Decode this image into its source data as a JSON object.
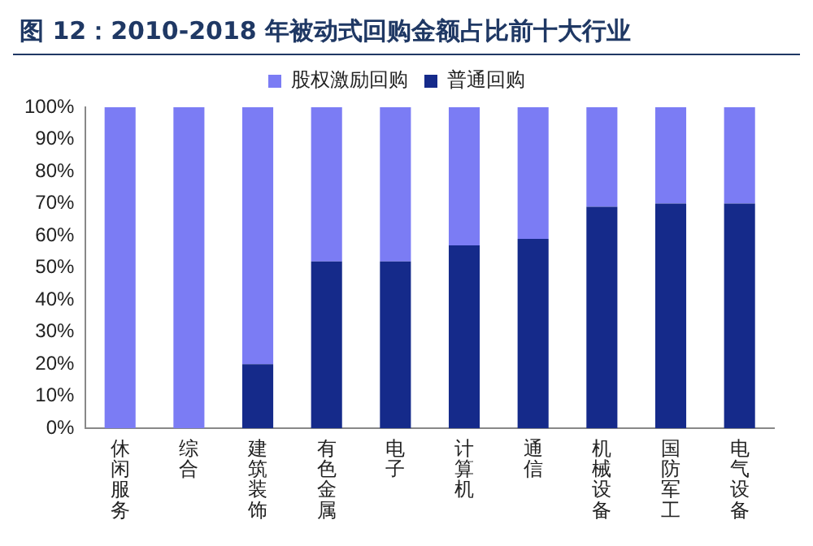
{
  "chart_data": {
    "type": "bar",
    "title": "图 12：2010-2018 年被动式回购金额占比前十大行业",
    "categories": [
      "休闲服务",
      "综合",
      "建筑装饰",
      "有色金属",
      "电子",
      "计算机",
      "通信",
      "机械设备",
      "国防军工",
      "电气设备"
    ],
    "stacked": true,
    "series": [
      {
        "name": "普通回购",
        "color": "#152a8a",
        "values": [
          0,
          0,
          20,
          52,
          52,
          57,
          59,
          69,
          70,
          70
        ]
      },
      {
        "name": "股权激励回购",
        "color": "#7b7cf4",
        "values": [
          100,
          100,
          80,
          48,
          48,
          43,
          41,
          31,
          30,
          30
        ]
      }
    ],
    "ylim": [
      0,
      100
    ],
    "yticks": [
      {
        "value": 0,
        "label": "0%"
      },
      {
        "value": 10,
        "label": "10%"
      },
      {
        "value": 20,
        "label": "20%"
      },
      {
        "value": 30,
        "label": "30%"
      },
      {
        "value": 40,
        "label": "40%"
      },
      {
        "value": 50,
        "label": "50%"
      },
      {
        "value": 60,
        "label": "60%"
      },
      {
        "value": 70,
        "label": "70%"
      },
      {
        "value": 80,
        "label": "80%"
      },
      {
        "value": 90,
        "label": "90%"
      },
      {
        "value": 100,
        "label": "100%"
      }
    ],
    "grid": false,
    "legend": "top"
  }
}
